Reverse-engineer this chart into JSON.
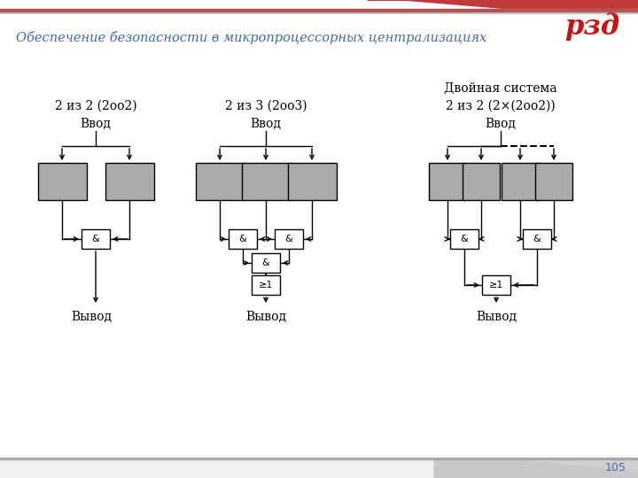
{
  "title": "Обеспечение безопасности в микропроцессорных централизациях",
  "title_color": "#4169B0",
  "title_fontsize": 10.5,
  "bg_color": "#FFFFFF",
  "box_fill": "#AAAAAA",
  "box_edge": "#000000",
  "gate_fill": "#FFFFFF",
  "gate_edge": "#000000",
  "text_color": "#000000",
  "page_num": "105",
  "page_num_color": "#4169B0",
  "d1_line1": "2 из 2 (2оо2)",
  "d1_line2": "Ввод",
  "d2_line1": "2 из 3 (2оо3)",
  "d2_line2": "Ввод",
  "d3_line1": "Двойная система",
  "d3_line2": "2 из 2 (2×(2оо2))",
  "d3_line3": "Ввод",
  "vyvod": "Вывод",
  "and_label": "&",
  "or_label": "≥1",
  "header_red": "#C0393B",
  "header_line_color": "#B05050",
  "rzd_red": "#CC1111"
}
